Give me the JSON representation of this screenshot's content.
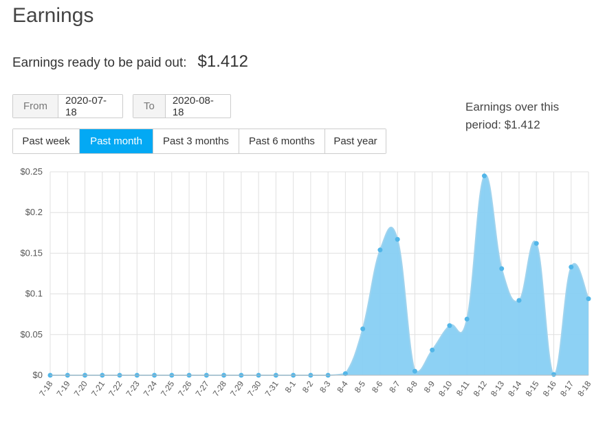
{
  "header": {
    "title": "Earnings",
    "ready_label": "Earnings ready to be paid out:",
    "ready_amount": "$1.412"
  },
  "filters": {
    "from_label": "From",
    "from_value": "2020-07-18",
    "to_label": "To",
    "to_value": "2020-08-18",
    "ranges": [
      {
        "label": "Past week",
        "active": false
      },
      {
        "label": "Past month",
        "active": true
      },
      {
        "label": "Past 3 months",
        "active": false
      },
      {
        "label": "Past 6 months",
        "active": false
      },
      {
        "label": "Past year",
        "active": false
      }
    ]
  },
  "summary": {
    "period_text": "Earnings over this period: $1.412"
  },
  "colors": {
    "accent": "#03a9f4",
    "area_fill": "#87cff3",
    "line": "#9fd3ee",
    "point": "#52b6e8",
    "grid": "#e0e0e0"
  },
  "chart_data": {
    "type": "area",
    "x": [
      "7-18",
      "7-19",
      "7-20",
      "7-21",
      "7-22",
      "7-23",
      "7-24",
      "7-25",
      "7-26",
      "7-27",
      "7-28",
      "7-29",
      "7-30",
      "7-31",
      "8-1",
      "8-2",
      "8-3",
      "8-4",
      "8-5",
      "8-6",
      "8-7",
      "8-8",
      "8-9",
      "8-10",
      "8-11",
      "8-12",
      "8-13",
      "8-14",
      "8-15",
      "8-16",
      "8-17",
      "8-18"
    ],
    "values": [
      0,
      0,
      0,
      0,
      0,
      0,
      0,
      0,
      0,
      0,
      0,
      0,
      0,
      0,
      0,
      0,
      0,
      0.002,
      0.057,
      0.154,
      0.167,
      0.005,
      0.031,
      0.061,
      0.069,
      0.245,
      0.131,
      0.092,
      0.162,
      0.001,
      0.133,
      0.094
    ],
    "ylim": [
      0,
      0.25
    ],
    "y_ticks": [
      0,
      0.05,
      0.1,
      0.15,
      0.2,
      0.25
    ],
    "y_tick_labels": [
      "$0",
      "$0.05",
      "$0.1",
      "$0.15",
      "$0.2",
      "$0.25"
    ],
    "grid": true,
    "smooth": true
  }
}
